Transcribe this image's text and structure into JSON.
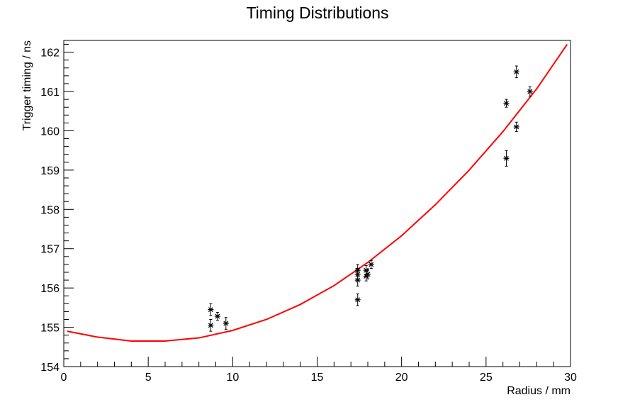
{
  "chart_data": {
    "type": "scatter",
    "title": "Timing Distributions",
    "xlabel": "Radius / mm",
    "ylabel": "Trigger timing / ns",
    "xlim": [
      0,
      30
    ],
    "ylim": [
      154,
      162.3
    ],
    "x_ticks": [
      0,
      5,
      10,
      15,
      20,
      25,
      30
    ],
    "y_ticks": [
      154,
      155,
      156,
      157,
      158,
      159,
      160,
      161,
      162
    ],
    "grid": false,
    "legend": "none",
    "colors": {
      "points": "#000000",
      "fit": "#ff0000",
      "frame": "#000000"
    },
    "points": [
      {
        "x": 8.7,
        "y": 155.45,
        "err": 0.15
      },
      {
        "x": 8.7,
        "y": 155.05,
        "err": 0.15
      },
      {
        "x": 9.1,
        "y": 155.28,
        "err": 0.1
      },
      {
        "x": 9.6,
        "y": 155.1,
        "err": 0.15
      },
      {
        "x": 17.4,
        "y": 156.45,
        "err": 0.15
      },
      {
        "x": 17.4,
        "y": 156.35,
        "err": 0.15
      },
      {
        "x": 17.4,
        "y": 156.2,
        "err": 0.15
      },
      {
        "x": 17.4,
        "y": 155.7,
        "err": 0.15
      },
      {
        "x": 17.9,
        "y": 156.3,
        "err": 0.12
      },
      {
        "x": 17.9,
        "y": 156.45,
        "err": 0.12
      },
      {
        "x": 18.0,
        "y": 156.35,
        "err": 0.12
      },
      {
        "x": 18.2,
        "y": 156.6,
        "err": 0.1
      },
      {
        "x": 26.2,
        "y": 160.7,
        "err": 0.1
      },
      {
        "x": 26.2,
        "y": 159.3,
        "err": 0.2
      },
      {
        "x": 26.8,
        "y": 161.5,
        "err": 0.15
      },
      {
        "x": 26.8,
        "y": 160.1,
        "err": 0.12
      },
      {
        "x": 27.6,
        "y": 161.0,
        "err": 0.12
      }
    ],
    "fit_curve": {
      "type": "line",
      "x": [
        0.2,
        2,
        4,
        6,
        8,
        10,
        12,
        14,
        16,
        18,
        20,
        22,
        24,
        26,
        28,
        29.8
      ],
      "y": [
        154.9,
        154.75,
        154.65,
        154.65,
        154.73,
        154.92,
        155.2,
        155.58,
        156.06,
        156.65,
        157.33,
        158.12,
        159.0,
        159.98,
        161.07,
        162.2
      ]
    }
  }
}
